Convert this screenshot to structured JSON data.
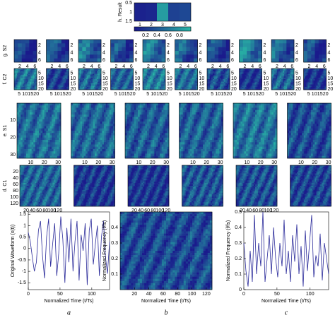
{
  "result": {
    "label": "h. Result",
    "xticks": [
      1,
      2,
      3,
      4,
      5
    ],
    "xlim": [
      0.5,
      5.5
    ],
    "yticks": [
      0.5,
      1,
      1.5
    ],
    "ylim": [
      0.5,
      1.5
    ],
    "colorbar_ticks": [
      0.2,
      0.4,
      0.6,
      0.8
    ],
    "colorbar_lim": [
      0,
      1
    ]
  },
  "rows": [
    {
      "label": "g. S2",
      "ticks": [
        2,
        4,
        6
      ],
      "lim": [
        0.5,
        6.5
      ]
    },
    {
      "label": "f. C2",
      "ticks": [
        5,
        10,
        15,
        20
      ],
      "lim": [
        0.5,
        20.5
      ]
    },
    {
      "label": "e. S1",
      "ticks": [
        10,
        20,
        30
      ],
      "lim": [
        0,
        32
      ]
    },
    {
      "label": "d. C1",
      "ticks": [
        20,
        40,
        60,
        80,
        100,
        120
      ],
      "lim": [
        0,
        128
      ]
    }
  ],
  "charts": [
    {
      "letter": "a",
      "xlabel": "Normalized Time (t/Ts)",
      "ylabel": "Original Waveform (x(t))",
      "xlim": [
        0,
        128
      ],
      "ylim": [
        -1.8,
        1.6
      ],
      "xticks": [
        0,
        50,
        100
      ],
      "yticks": [
        -1.5,
        -1,
        -0.5,
        0,
        0.5,
        1,
        1.5
      ],
      "x": [
        0,
        3.2,
        6.4,
        9.6,
        12.8,
        16,
        19.2,
        22.4,
        25.6,
        28.8,
        32,
        35.2,
        38.4,
        41.6,
        44.8,
        48,
        51.2,
        54.4,
        57.6,
        60.8,
        64,
        67.2,
        70.4,
        73.6,
        76.8,
        80,
        83.2,
        86.4,
        89.6,
        92.8,
        96,
        99.2,
        102.4,
        105.6,
        108.8,
        112,
        115.2,
        118.4,
        121.6,
        124.8,
        128
      ],
      "values": [
        0.7,
        0.3,
        -0.4,
        -1.0,
        -0.6,
        0.8,
        1.2,
        -0.3,
        -1.3,
        0.5,
        1.3,
        -0.8,
        0.2,
        1.1,
        -1.2,
        -0.2,
        1.4,
        0.4,
        -1.5,
        0.9,
        -0.6,
        1.3,
        -1.0,
        0.3,
        1.2,
        -1.4,
        0.6,
        -0.1,
        1.1,
        -1.6,
        0.8,
        1.3,
        -0.7,
        0.2,
        1.0,
        -1.2,
        0.5,
        1.2,
        -0.4,
        -1.1,
        0.3
      ]
    },
    {
      "letter": "b",
      "xlabel": "Normalized Time (t/Ts)",
      "ylabel": "Normalized Frequency (f/fs)",
      "xlim": [
        0,
        128
      ],
      "ylim": [
        0,
        0.5
      ],
      "xticks": [
        20,
        40,
        60,
        80,
        100,
        120
      ],
      "yticks": [
        0.1,
        0.2,
        0.3,
        0.4
      ]
    },
    {
      "letter": "c",
      "xlabel": "Normalized Time (t/Ts)",
      "ylabel": "Normalized Frequency (f/fs)",
      "xlim": [
        0,
        128
      ],
      "ylim": [
        0,
        0.5
      ],
      "xticks": [
        0,
        50,
        100
      ],
      "yticks": [
        0,
        0.1,
        0.2,
        0.3,
        0.4,
        0.5
      ],
      "x": [
        0,
        3.2,
        6.4,
        9.6,
        12.8,
        16,
        19.2,
        22.4,
        25.6,
        28.8,
        32,
        35.2,
        38.4,
        41.6,
        44.8,
        48,
        51.2,
        54.4,
        57.6,
        60.8,
        64,
        67.2,
        70.4,
        73.6,
        76.8,
        80,
        83.2,
        86.4,
        89.6,
        92.8,
        96,
        99.2,
        102.4,
        105.6,
        108.8,
        112,
        115.2,
        118.4,
        121.6,
        124.8,
        128
      ],
      "values": [
        0.3,
        0.12,
        0.02,
        0.25,
        0.05,
        0.48,
        0.1,
        0.3,
        0.15,
        0.5,
        0.05,
        0.2,
        0.35,
        0.1,
        0.4,
        0.2,
        0.08,
        0.3,
        0.15,
        0.45,
        0.1,
        0.25,
        0.05,
        0.35,
        0.18,
        0.42,
        0.1,
        0.28,
        0.02,
        0.38,
        0.12,
        0.3,
        0.48,
        0.08,
        0.22,
        0.15,
        0.36,
        0.06,
        0.3,
        0.2,
        0.1
      ]
    }
  ]
}
